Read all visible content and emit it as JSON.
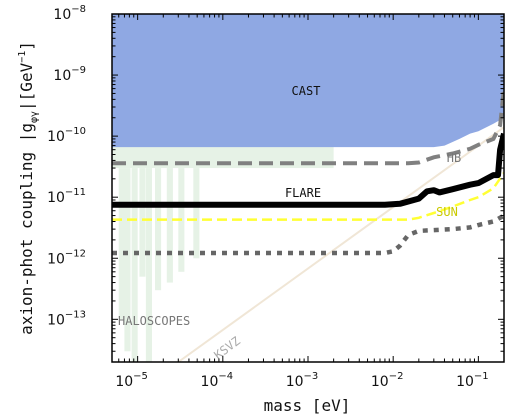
{
  "chart_data": {
    "type": "area",
    "xlabel": "mass [eV]",
    "ylabel": "axion-phot coupling |g",
    "ylabel_subscript": "φγ",
    "ylabel_unit": "|[GeV",
    "ylabel_unit_sup": "−1",
    "ylabel_unit_close": "]",
    "x_scale": "log",
    "y_scale": "log",
    "xlim": [
      5e-06,
      0.2
    ],
    "ylim": [
      2e-14,
      1e-08
    ],
    "grid": false,
    "x_ticks": [
      {
        "value": 1e-05,
        "base": "10",
        "exp": "−5"
      },
      {
        "value": 0.0001,
        "base": "10",
        "exp": "−4"
      },
      {
        "value": 0.001,
        "base": "10",
        "exp": "−3"
      },
      {
        "value": 0.01,
        "base": "10",
        "exp": "−2"
      },
      {
        "value": 0.1,
        "base": "10",
        "exp": "−1"
      }
    ],
    "y_ticks": [
      {
        "value": 1e-08,
        "base": "10",
        "exp": "−8"
      },
      {
        "value": 1e-09,
        "base": "10",
        "exp": "−9"
      },
      {
        "value": 1e-10,
        "base": "10",
        "exp": "−10"
      },
      {
        "value": 1e-11,
        "base": "10",
        "exp": "−11"
      },
      {
        "value": 1e-12,
        "base": "10",
        "exp": "−12"
      },
      {
        "value": 1e-13,
        "base": "10",
        "exp": "−13"
      }
    ],
    "colors": {
      "cast": "#8fa8e3",
      "haloscopes": "#e6f2e6",
      "hb": "#808080",
      "flare": "#000000",
      "sun": "#ffff33",
      "iaxo": "#666666",
      "ksvz": "#f0e6d6"
    },
    "labels": {
      "cast": "CAST",
      "hb": "HB",
      "flare": "FLARE",
      "sun": "SUN",
      "haloscopes": "HALOSCOPES",
      "ksvz": "KSVZ"
    },
    "series": [
      {
        "key": "cast",
        "kind": "filled-region",
        "x": [
          5e-06,
          0.02,
          0.03,
          0.04,
          0.06,
          0.08,
          0.1,
          0.15,
          0.2
        ],
        "y": [
          6.6e-11,
          6.6e-11,
          6.6e-11,
          7e-11,
          9e-11,
          1.1e-10,
          1.2e-10,
          1.6e-10,
          2e-10
        ]
      },
      {
        "key": "hb",
        "kind": "dashed-line",
        "x": [
          5e-06,
          0.015,
          0.02,
          0.03,
          0.05,
          0.08,
          0.1,
          0.15,
          0.18,
          0.2
        ],
        "y": [
          3.6e-11,
          3.6e-11,
          3.7e-11,
          4.5e-11,
          5.2e-11,
          6.2e-11,
          7.2e-11,
          9e-11,
          1.5e-10,
          6e-10
        ]
      },
      {
        "key": "flare",
        "kind": "thick-line",
        "x": [
          5e-06,
          0.008,
          0.012,
          0.02,
          0.025,
          0.03,
          0.035,
          0.05,
          0.08,
          0.1,
          0.15,
          0.17,
          0.18,
          0.2
        ],
        "y": [
          7.5e-12,
          7.5e-12,
          7.8e-12,
          9.5e-12,
          1.25e-11,
          1.3e-11,
          1.2e-11,
          1.35e-11,
          1.6e-11,
          1.7e-11,
          2.3e-11,
          2.3e-11,
          6e-11,
          1.1e-10
        ]
      },
      {
        "key": "sun",
        "kind": "dashed-line",
        "x": [
          5e-06,
          0.015,
          0.02,
          0.03,
          0.05,
          0.08,
          0.1,
          0.15,
          0.2
        ],
        "y": [
          4.3e-12,
          4.3e-12,
          4.6e-12,
          5.5e-12,
          7e-12,
          9e-12,
          1e-11,
          1.4e-11,
          2.5e-11
        ]
      },
      {
        "key": "iaxo",
        "kind": "dotted-line",
        "x": [
          5e-06,
          0.008,
          0.01,
          0.012,
          0.015,
          0.02,
          0.05,
          0.08,
          0.1,
          0.15,
          0.2
        ],
        "y": [
          1.22e-12,
          1.22e-12,
          1.3e-12,
          1.6e-12,
          2.4e-12,
          2.8e-12,
          3e-12,
          3.2e-12,
          3.5e-12,
          4e-12,
          5e-12
        ]
      },
      {
        "key": "ksvz",
        "kind": "thin-line",
        "x": [
          3e-05,
          0.2
        ],
        "y": [
          2e-14,
          1.4e-10
        ]
      }
    ]
  }
}
